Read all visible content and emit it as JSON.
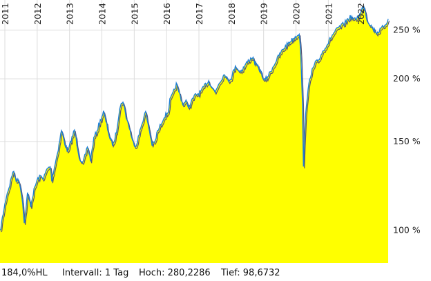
{
  "colors": {
    "area_fill": "#ffff00",
    "line_main": "#1e7fd6",
    "line_shadow": "#555577",
    "grid": "#dcdcdc",
    "axis_text": "#222222",
    "background": "#ffffff"
  },
  "footer": {
    "hl": "184,0%HL",
    "interval": "Intervall: 1 Tag",
    "high": "Hoch: 280,2286",
    "low": "Tief: 98,6732"
  },
  "chart_data": {
    "type": "area",
    "x_axis": {
      "tick_labels": [
        "2011",
        "2012",
        "2013",
        "2014",
        "2015",
        "2016",
        "2017",
        "2018",
        "2019",
        "2020",
        "2021",
        "2022"
      ],
      "range": [
        2010.85,
        2022.85
      ]
    },
    "y_axis": {
      "scale": "log",
      "tick_values": [
        100,
        150,
        200,
        250
      ],
      "tick_labels": [
        "100 %",
        "150 %",
        "200 %",
        "250 %"
      ],
      "range": [
        86,
        287
      ],
      "grid": true,
      "position": "right"
    },
    "stats": {
      "high": 280.2286,
      "low": 98.6732,
      "hl_percent": 184.0,
      "interval": "1 Tag"
    },
    "series": [
      {
        "x": [
          2010.85,
          2010.95,
          2011.05,
          2011.15,
          2011.25,
          2011.35,
          2011.45,
          2011.55,
          2011.6,
          2011.7,
          2011.8,
          2011.9,
          2012.0,
          2012.1,
          2012.2,
          2012.3,
          2012.4,
          2012.45,
          2012.55,
          2012.65,
          2012.75,
          2012.85,
          2012.95,
          2013.05,
          2013.15,
          2013.2,
          2013.3,
          2013.4,
          2013.5,
          2013.55,
          2013.65,
          2013.75,
          2013.85,
          2013.95,
          2014.05,
          2014.15,
          2014.25,
          2014.35,
          2014.45,
          2014.55,
          2014.65,
          2014.75,
          2014.85,
          2014.95,
          2015.05,
          2015.15,
          2015.25,
          2015.35,
          2015.45,
          2015.55,
          2015.65,
          2015.7,
          2015.8,
          2015.9,
          2016.05,
          2016.1,
          2016.2,
          2016.3,
          2016.4,
          2016.5,
          2016.6,
          2016.7,
          2016.8,
          2016.9,
          2017.0,
          2017.1,
          2017.2,
          2017.3,
          2017.4,
          2017.5,
          2017.6,
          2017.7,
          2017.8,
          2017.9,
          2018.0,
          2018.05,
          2018.15,
          2018.25,
          2018.35,
          2018.45,
          2018.55,
          2018.65,
          2018.75,
          2018.85,
          2018.95,
          2019.0,
          2019.1,
          2019.2,
          2019.3,
          2019.4,
          2019.5,
          2019.6,
          2019.7,
          2019.8,
          2019.9,
          2020.0,
          2020.1,
          2020.15,
          2020.2,
          2020.23,
          2020.27,
          2020.3,
          2020.35,
          2020.4,
          2020.45,
          2020.5,
          2020.6,
          2020.7,
          2020.8,
          2020.9,
          2021.0,
          2021.1,
          2021.2,
          2021.3,
          2021.4,
          2021.5,
          2021.6,
          2021.7,
          2021.8,
          2021.9,
          2022.0,
          2022.05,
          2022.1,
          2022.2,
          2022.3,
          2022.4,
          2022.5,
          2022.6,
          2022.7,
          2022.8,
          2022.85
        ],
        "y": [
          99,
          108,
          117,
          123,
          131,
          126,
          125,
          114,
          103,
          118,
          112,
          120,
          126,
          128,
          127,
          132,
          134,
          126,
          135,
          145,
          158,
          149,
          143,
          151,
          158,
          152,
          140,
          135,
          142,
          147,
          138,
          152,
          158,
          165,
          172,
          162,
          152,
          148,
          157,
          175,
          181,
          168,
          160,
          150,
          147,
          155,
          164,
          172,
          160,
          148,
          150,
          156,
          161,
          167,
          172,
          181,
          187,
          195,
          187,
          178,
          180,
          176,
          182,
          186,
          187,
          190,
          195,
          198,
          193,
          188,
          195,
          200,
          205,
          198,
          201,
          206,
          212,
          207,
          209,
          214,
          218,
          221,
          214,
          210,
          204,
          198,
          201,
          206,
          212,
          218,
          224,
          229,
          233,
          237,
          240,
          243,
          247,
          222,
          178,
          135,
          155,
          172,
          185,
          195,
          201,
          208,
          215,
          218,
          225,
          231,
          236,
          243,
          248,
          252,
          255,
          258,
          263,
          266,
          262,
          265,
          270,
          276,
          280,
          262,
          256,
          251,
          247,
          250,
          254,
          259,
          263
        ]
      }
    ]
  }
}
